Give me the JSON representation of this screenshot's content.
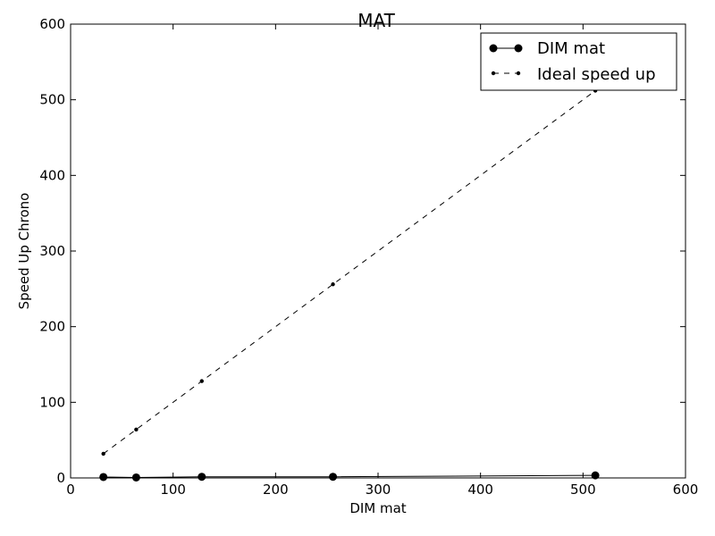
{
  "chart_data": {
    "type": "line",
    "title": "MAT",
    "xlabel": "DIM mat",
    "ylabel": "Speed Up Chrono",
    "xlim": [
      0,
      600
    ],
    "ylim": [
      0,
      600
    ],
    "xticks": [
      0,
      100,
      200,
      300,
      400,
      500,
      600
    ],
    "yticks": [
      0,
      100,
      200,
      300,
      400,
      500,
      600
    ],
    "grid": false,
    "legend_position": "top-right",
    "series": [
      {
        "name": "DIM mat",
        "style": "solid",
        "marker": "large-dot",
        "color": "#000000",
        "x": [
          32,
          64,
          128,
          256,
          512
        ],
        "y": [
          1.2,
          0.6,
          1.5,
          1.5,
          3.4
        ]
      },
      {
        "name": "Ideal speed up",
        "style": "dashed",
        "marker": "small-dot",
        "color": "#000000",
        "x": [
          32,
          64,
          128,
          256,
          512
        ],
        "y": [
          32,
          64,
          128,
          256,
          512
        ]
      }
    ]
  }
}
